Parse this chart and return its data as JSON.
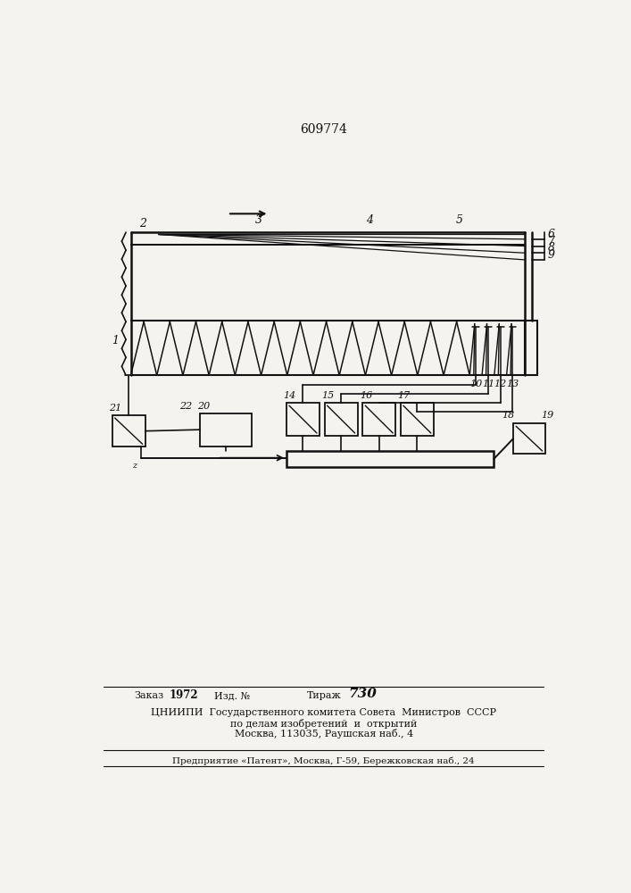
{
  "patent_number": "609774",
  "bg": "#f5f3ef",
  "lc": "#111111",
  "bottom_line1": "Заказ  1972     Изд. №              Тираж  730",
  "bottom_line2": "ЦНИИПИ  Государственного комитета Совета  Министров  СССР",
  "bottom_line3": "по делам изобретений  и  открытий",
  "bottom_line4": "Москва, 113035, Раушская наб., 4",
  "bottom_line5": "Предприятие «Патент», Москва, Г-59, Бережковская наб., 24"
}
